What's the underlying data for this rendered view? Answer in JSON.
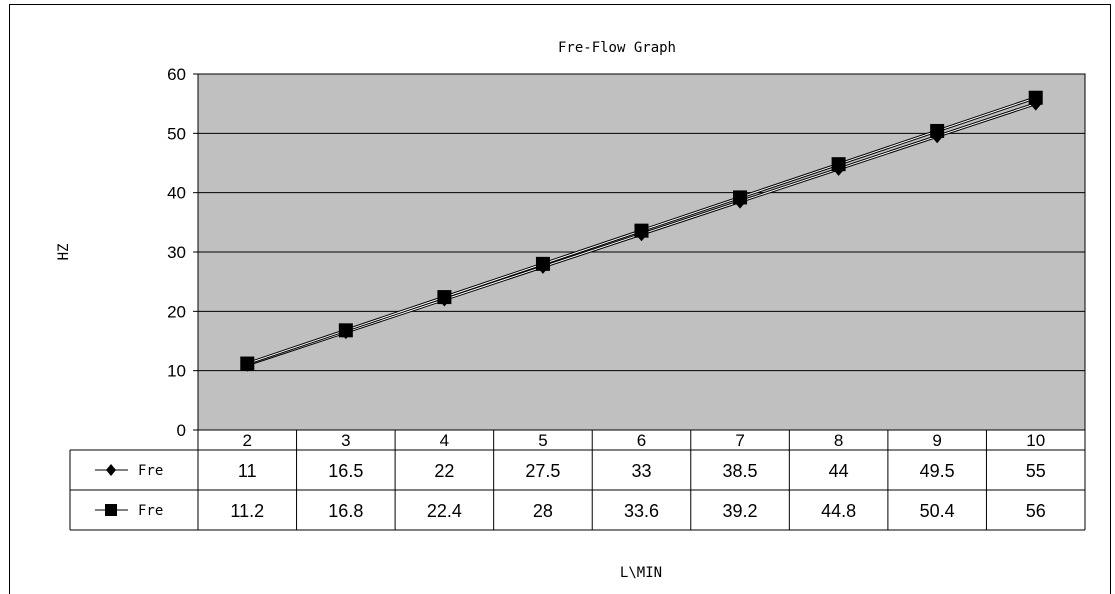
{
  "chart_data": {
    "type": "line",
    "title": "Fre-Flow Graph",
    "xlabel": "L\\MIN",
    "ylabel": "HZ",
    "categories": [
      "2",
      "3",
      "4",
      "5",
      "6",
      "7",
      "8",
      "9",
      "10"
    ],
    "ylim": [
      0,
      60
    ],
    "yticks": [
      0,
      10,
      20,
      30,
      40,
      50,
      60
    ],
    "grid": true,
    "legend": "data-table",
    "plot_background": "#c0c0c0",
    "series": [
      {
        "name": "Fre",
        "marker": "diamond",
        "values": [
          11,
          16.5,
          22,
          27.5,
          33,
          38.5,
          44,
          49.5,
          55
        ],
        "labels": [
          "11",
          "16.5",
          "22",
          "27.5",
          "33",
          "38.5",
          "44",
          "49.5",
          "55"
        ]
      },
      {
        "name": "Fre",
        "marker": "square",
        "values": [
          11.2,
          16.8,
          22.4,
          28,
          33.6,
          39.2,
          44.8,
          50.4,
          56
        ],
        "labels": [
          "11.2",
          "16.8",
          "22.4",
          "28",
          "33.6",
          "39.2",
          "44.8",
          "50.4",
          "56"
        ]
      }
    ]
  }
}
